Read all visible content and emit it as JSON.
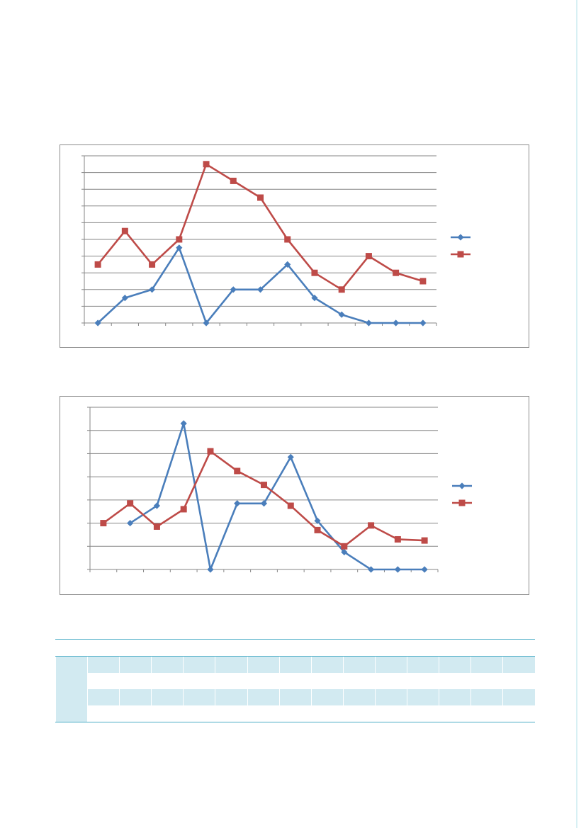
{
  "colors": {
    "series_1": "#4a7ebb",
    "series_2": "#be4b48",
    "gridline": "#868686",
    "frame": "#8c8c8c",
    "table_band": "#d2eaf1",
    "table_rule": "#4bacc6",
    "page_rule": "#d8f0f4"
  },
  "chart_data": [
    {
      "type": "line",
      "x": [
        1,
        2,
        3,
        4,
        5,
        6,
        7,
        8,
        9,
        10,
        11,
        12,
        13
      ],
      "ylim": [
        0,
        10
      ],
      "grid": true,
      "legend": "right",
      "series": [
        {
          "marker": "diamond",
          "color": "#4a7ebb",
          "values": [
            0,
            1.5,
            2,
            4.5,
            0,
            2,
            2,
            3.5,
            1.5,
            0.5,
            0,
            0,
            0
          ]
        },
        {
          "marker": "square",
          "color": "#be4b48",
          "values": [
            3.5,
            5.5,
            3.5,
            5,
            9.5,
            8.5,
            7.5,
            5,
            3,
            2,
            4,
            3,
            2.5
          ]
        }
      ]
    },
    {
      "type": "line",
      "x": [
        1,
        2,
        3,
        4,
        5,
        6,
        7,
        8,
        9,
        10,
        11,
        12,
        13
      ],
      "ylim": [
        0,
        7
      ],
      "grid": true,
      "legend": "right",
      "series": [
        {
          "marker": "diamond",
          "color": "#4a7ebb",
          "values": [
            null,
            2,
            2.75,
            6.3,
            0,
            2.85,
            2.85,
            4.85,
            2.1,
            0.75,
            0,
            0,
            0
          ]
        },
        {
          "marker": "square",
          "color": "#be4b48",
          "values": [
            2,
            2.85,
            1.85,
            2.6,
            5.1,
            4.25,
            3.65,
            2.75,
            1.7,
            1,
            1.9,
            1.3,
            1.25
          ]
        }
      ]
    }
  ],
  "table": {
    "rows": 5,
    "columns": 15
  }
}
